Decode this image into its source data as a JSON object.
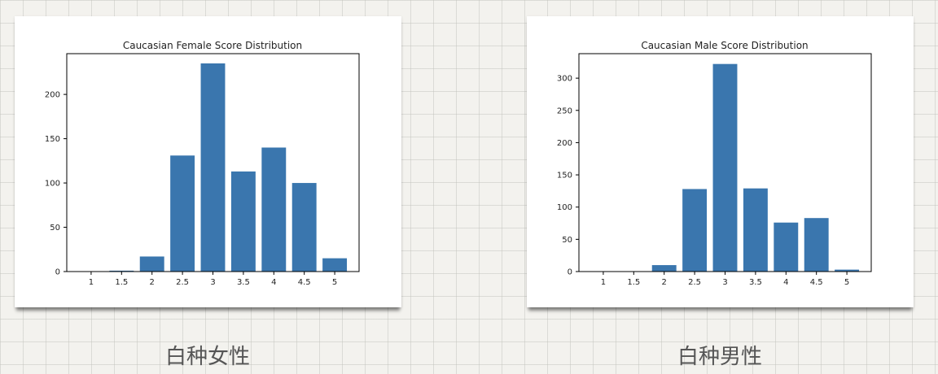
{
  "colors": {
    "bar": "#3a76ae",
    "axis": "#000000",
    "text": "#222222"
  },
  "captions": {
    "left": "白种女性",
    "right": "白种男性"
  },
  "chart_data": [
    {
      "type": "bar",
      "title": "Caucasian Female Score Distribution",
      "categories": [
        "1",
        "1.5",
        "2",
        "2.5",
        "3",
        "3.5",
        "4",
        "4.5",
        "5"
      ],
      "values": [
        0,
        1,
        17,
        131,
        235,
        113,
        140,
        100,
        15
      ],
      "yticks": [
        0,
        50,
        100,
        150,
        200
      ],
      "ylim": [
        0,
        246
      ],
      "xlabel": "",
      "ylabel": "",
      "grid": false
    },
    {
      "type": "bar",
      "title": "Caucasian Male Score Distribution",
      "categories": [
        "1",
        "1.5",
        "2",
        "2.5",
        "3",
        "3.5",
        "4",
        "4.5",
        "5"
      ],
      "values": [
        0,
        0,
        10,
        128,
        322,
        129,
        76,
        83,
        3
      ],
      "yticks": [
        0,
        50,
        100,
        150,
        200,
        250,
        300
      ],
      "ylim": [
        0,
        338
      ],
      "xlabel": "",
      "ylabel": "",
      "grid": false
    }
  ]
}
